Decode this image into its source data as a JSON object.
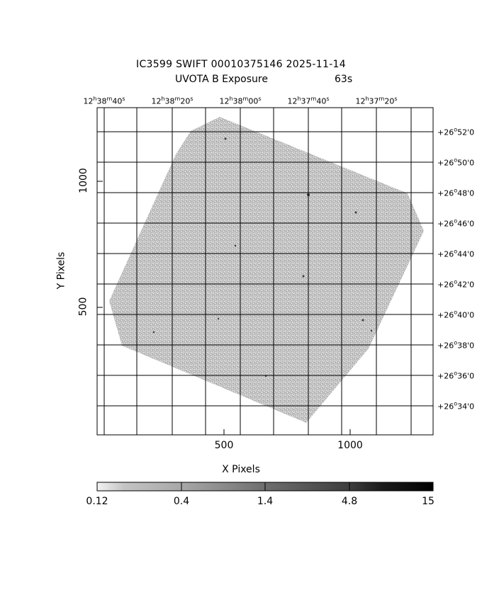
{
  "title": {
    "line1": "IC3599 SWIFT 00010375146 2025-11-14",
    "line2_label": "UVOTA B Exposure",
    "line2_value": "63s"
  },
  "axes": {
    "xlabel": "X Pixels",
    "ylabel": "Y Pixels",
    "x_ticks": [
      "500",
      "1000"
    ],
    "y_ticks": [
      "500",
      "1000"
    ]
  },
  "ra_labels": [
    {
      "h": "12",
      "m": "38",
      "s": "40"
    },
    {
      "h": "12",
      "m": "38",
      "s": "20"
    },
    {
      "h": "12",
      "m": "38",
      "s": "00"
    },
    {
      "h": "12",
      "m": "37",
      "s": "40"
    },
    {
      "h": "12",
      "m": "37",
      "s": "20"
    }
  ],
  "dec_labels": [
    {
      "d": "+26",
      "m": "52",
      "s": "0"
    },
    {
      "d": "+26",
      "m": "50",
      "s": "0"
    },
    {
      "d": "+26",
      "m": "48",
      "s": "0"
    },
    {
      "d": "+26",
      "m": "46",
      "s": "0"
    },
    {
      "d": "+26",
      "m": "44",
      "s": "0"
    },
    {
      "d": "+26",
      "m": "42",
      "s": "0"
    },
    {
      "d": "+26",
      "m": "40",
      "s": "0"
    },
    {
      "d": "+26",
      "m": "38",
      "s": "0"
    },
    {
      "d": "+26",
      "m": "36",
      "s": "0"
    },
    {
      "d": "+26",
      "m": "34",
      "s": "0"
    }
  ],
  "colorbar": {
    "ticks": [
      "0.12",
      "0.4",
      "1.4",
      "4.8",
      "15"
    ],
    "scale": "log",
    "colormap": "grey-reversed"
  },
  "colors": {
    "exposure_fill": "#b4b4b4",
    "grid_line": "#000000",
    "background": "#ffffff"
  }
}
